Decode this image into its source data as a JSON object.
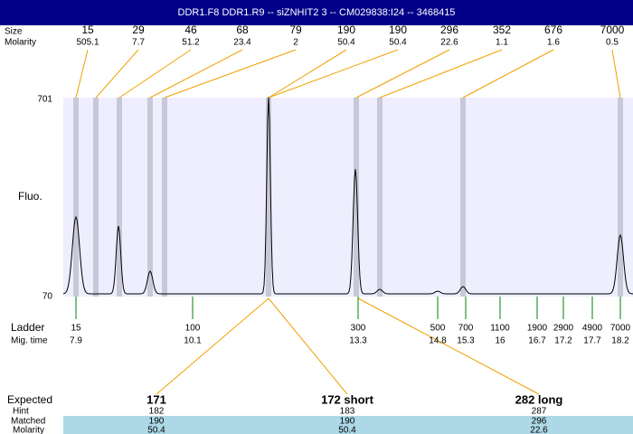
{
  "title": "DDR1.F8  DDR1.R9 -- siZNHIT2 3 -- CM029838:I24 -- 3468415",
  "peaks": {
    "size_label": "Size",
    "molarity_label": "Molarity",
    "items": [
      {
        "size": 15,
        "molarity": 505.1
      },
      {
        "size": 29,
        "molarity": 7.7
      },
      {
        "size": 46,
        "molarity": 51.2
      },
      {
        "size": 68,
        "molarity": 23.4
      },
      {
        "size": 79,
        "molarity": 2
      },
      {
        "size": 190,
        "molarity": 50.4
      },
      {
        "size": 190,
        "molarity": 50.4
      },
      {
        "size": 296,
        "molarity": 22.6
      },
      {
        "size": 352,
        "molarity": 1.1
      },
      {
        "size": 676,
        "molarity": 1.6
      },
      {
        "size": 7000,
        "molarity": 0.5
      }
    ]
  },
  "plot": {
    "y_top": 701,
    "y_bottom": 70,
    "y_label": "Fluo."
  },
  "ladder": {
    "label": "Ladder",
    "time_label": "Mig. time",
    "items": [
      {
        "size": 15,
        "time": 7.9
      },
      {
        "size": 100,
        "time": 10.1
      },
      {
        "size": 300,
        "time": 13.3
      },
      {
        "size": 500,
        "time": 14.8
      },
      {
        "size": 700,
        "time": 15.3
      },
      {
        "size": 1100,
        "time": 16
      },
      {
        "size": 1900,
        "time": 16.7
      },
      {
        "size": 2900,
        "time": 17.2
      },
      {
        "size": 4900,
        "time": 17.7
      },
      {
        "size": 7000,
        "time": 18.2
      }
    ]
  },
  "expected": {
    "labels": {
      "expected": "Expected",
      "hint": "Hint",
      "matched": "Matched",
      "molarity": "Molarity"
    },
    "items": [
      {
        "label": "171",
        "hint": 182,
        "matched": 190,
        "molarity": 50.4
      },
      {
        "label": "172 short",
        "hint": 183,
        "matched": 190,
        "molarity": 50.4
      },
      {
        "label": "282 long",
        "hint": 287,
        "matched": 296,
        "molarity": 22.6
      }
    ]
  }
}
